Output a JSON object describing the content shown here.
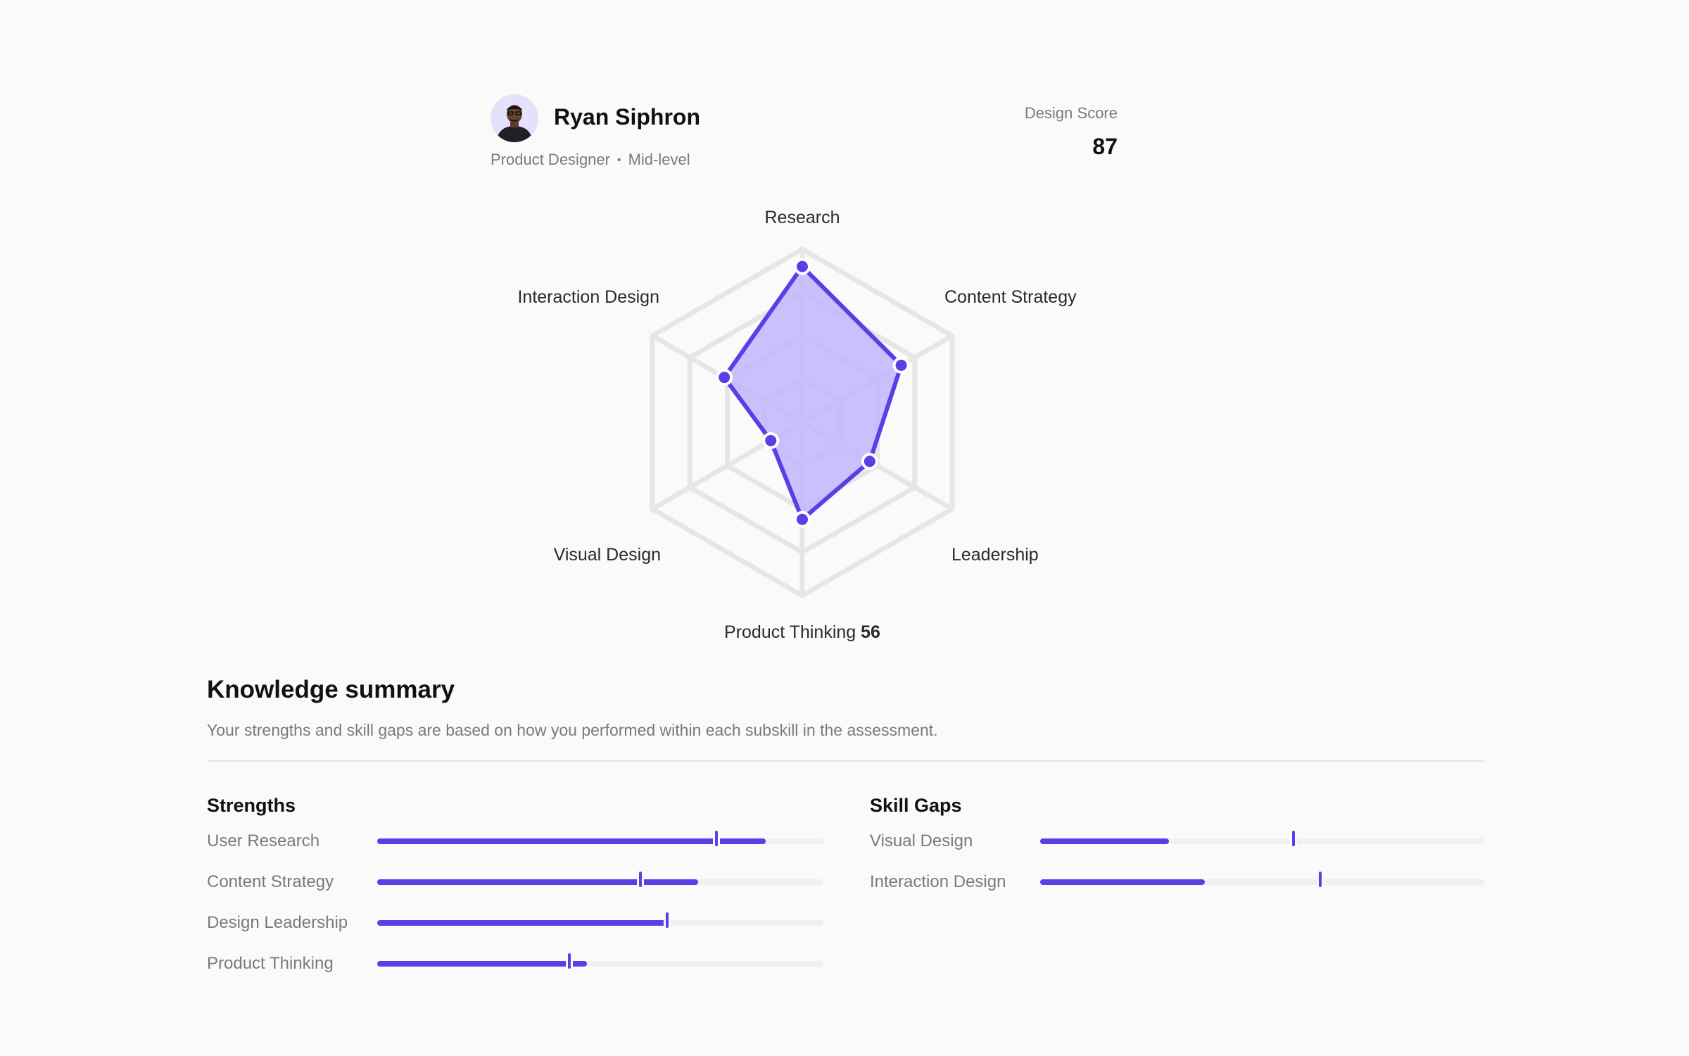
{
  "profile": {
    "name": "Ryan Siphron",
    "role": "Product Designer",
    "level": "Mid-level",
    "avatar_icon": "person-avatar"
  },
  "score": {
    "label": "Design Score",
    "value": "87"
  },
  "radar": {
    "accent_color": "#5a3ee6",
    "fill_color": "#c2b4fb",
    "axes": [
      {
        "label": "Research",
        "value": 90,
        "shown_value": ""
      },
      {
        "label": "Content Strategy",
        "value": 66,
        "shown_value": ""
      },
      {
        "label": "Leadership",
        "value": 45,
        "shown_value": ""
      },
      {
        "label": "Product Thinking",
        "value": 56,
        "shown_value": "56"
      },
      {
        "label": "Visual Design",
        "value": 21,
        "shown_value": ""
      },
      {
        "label": "Interaction Design",
        "value": 52,
        "shown_value": ""
      }
    ],
    "rings": 4
  },
  "summary": {
    "title": "Knowledge summary",
    "description": "Your strengths and skill gaps are based on how you performed within each subskill in the assessment.",
    "strengths": {
      "title": "Strengths",
      "items": [
        {
          "label": "User Research",
          "value": 87,
          "benchmark": 76
        },
        {
          "label": "Content Strategy",
          "value": 72,
          "benchmark": 59
        },
        {
          "label": "Design Leadership",
          "value": 65,
          "benchmark": 65
        },
        {
          "label": "Product Thinking",
          "value": 47,
          "benchmark": 43
        }
      ]
    },
    "gaps": {
      "title": "Skill Gaps",
      "items": [
        {
          "label": "Visual Design",
          "value": 29,
          "benchmark": 57
        },
        {
          "label": "Interaction Design",
          "value": 37,
          "benchmark": 63
        }
      ]
    }
  }
}
